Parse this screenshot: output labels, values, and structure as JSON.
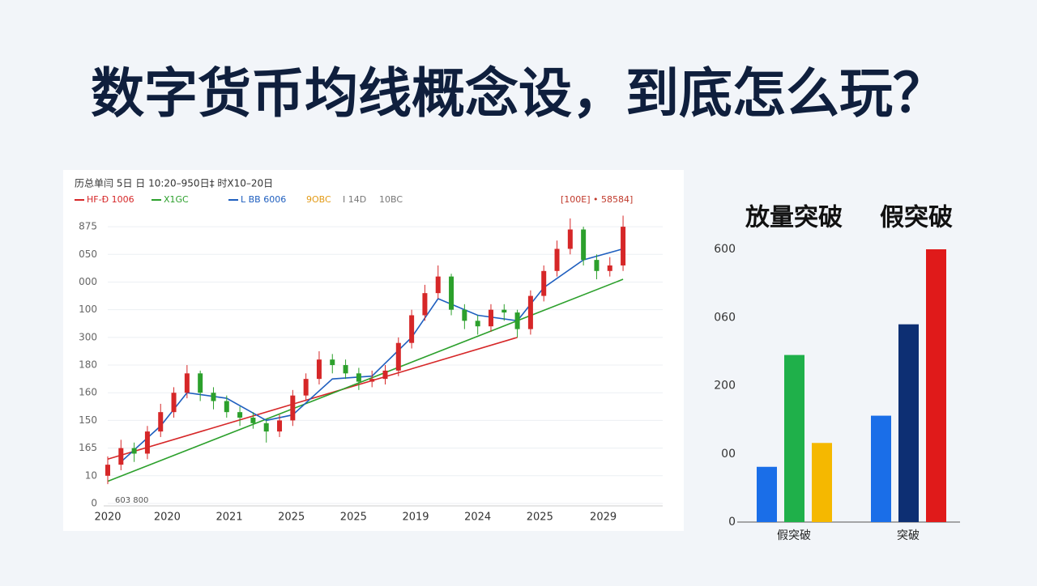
{
  "title": "数字货币均线概念设，到底怎么玩？",
  "chart_data": [
    {
      "type": "candlestick",
      "header": "历总单闫 5日 日 10:20–950日‡ 时X10–20日",
      "top_right_label": "[100E] • 58584]",
      "corner_note": "603 800",
      "up_color": "#d62728",
      "down_color": "#2ca02c",
      "xlim": [
        0,
        42
      ],
      "xticks": [
        {
          "value": 0,
          "label": "2020"
        },
        {
          "value": 4.5,
          "label": "2020"
        },
        {
          "value": 9.2,
          "label": "2021"
        },
        {
          "value": 13.9,
          "label": "2025"
        },
        {
          "value": 18.6,
          "label": "2025"
        },
        {
          "value": 23.3,
          "label": "2019"
        },
        {
          "value": 28,
          "label": "2024"
        },
        {
          "value": 32.7,
          "label": "2025"
        },
        {
          "value": 37.5,
          "label": "2029"
        }
      ],
      "ylim": [
        0,
        105
      ],
      "yticks": [
        0,
        {
          "value": 10,
          "label": "10"
        },
        {
          "value": 20,
          "label": "165"
        },
        {
          "value": 30,
          "label": "150"
        },
        {
          "value": 40,
          "label": "160"
        },
        {
          "value": 50,
          "label": "180"
        },
        {
          "value": 60,
          "label": "300"
        },
        {
          "value": 70,
          "label": "100"
        },
        {
          "value": 80,
          "label": "000"
        },
        {
          "value": 90,
          "label": "050"
        },
        {
          "value": 100,
          "label": "875"
        }
      ],
      "grid": true,
      "candles": {
        "x": [
          0,
          1,
          2,
          3,
          4,
          5,
          6,
          7,
          8,
          9,
          10,
          11,
          12,
          13,
          14,
          15,
          16,
          17,
          18,
          19,
          20,
          21,
          22,
          23,
          24,
          25,
          26,
          27,
          28,
          29,
          30,
          31,
          32,
          33,
          34,
          35,
          36,
          37,
          38,
          39
        ],
        "open": [
          10,
          14,
          20,
          18,
          26,
          33,
          40,
          47,
          40,
          37,
          33,
          31,
          29,
          26,
          30,
          39,
          45,
          52,
          50,
          47,
          44,
          45,
          48,
          58,
          68,
          76,
          82,
          70,
          66,
          64,
          70,
          69,
          63,
          75,
          84,
          92,
          99,
          88,
          84,
          86
        ],
        "high": [
          17,
          23,
          22,
          28,
          36,
          42,
          50,
          48,
          42,
          39,
          35,
          33,
          30,
          32,
          41,
          47,
          55,
          54,
          52,
          49,
          48,
          50,
          60,
          70,
          79,
          86,
          83,
          72,
          68,
          72,
          72,
          70,
          77,
          86,
          95,
          103,
          100,
          90,
          89,
          104
        ],
        "low": [
          7,
          12,
          15,
          16,
          24,
          31,
          38,
          37,
          34,
          31,
          28,
          27,
          22,
          24,
          28,
          37,
          43,
          47,
          45,
          41,
          42,
          43,
          46,
          56,
          66,
          74,
          68,
          63,
          61,
          62,
          66,
          60,
          61,
          73,
          82,
          90,
          86,
          81,
          82,
          84
        ],
        "close": [
          14,
          20,
          18,
          26,
          33,
          40,
          47,
          40,
          37,
          33,
          31,
          29,
          26,
          30,
          39,
          45,
          52,
          50,
          47,
          44,
          45,
          48,
          58,
          68,
          76,
          82,
          70,
          66,
          64,
          70,
          69,
          63,
          75,
          84,
          92,
          99,
          88,
          84,
          86,
          100
        ]
      },
      "series": [
        {
          "name": "HF-Đ 1006",
          "color": "#d62728",
          "x": [
            0,
            31
          ],
          "values": [
            16,
            60
          ]
        },
        {
          "name": "X1GC",
          "color": "#2ca02c",
          "x": [
            0,
            39
          ],
          "values": [
            8,
            81
          ]
        },
        {
          "name": "L BB 6006",
          "color": "#1f5fbf",
          "x": [
            1,
            4,
            6,
            9,
            12,
            14,
            17,
            20,
            23,
            25,
            28,
            31,
            33,
            36,
            39
          ],
          "values": [
            15,
            28,
            40,
            38,
            30,
            32,
            45,
            46,
            60,
            74,
            68,
            66,
            78,
            88,
            92
          ]
        }
      ],
      "legend_extra": [
        "9OBC",
        "I 14D",
        "10BC"
      ]
    },
    {
      "type": "bar",
      "group_titles": [
        "放量突破",
        "假突破"
      ],
      "categories": [
        "假突破",
        "突破"
      ],
      "ylim": [
        0,
        400
      ],
      "yticks": [
        0,
        {
          "value": 100,
          "label": "00"
        },
        200,
        {
          "value": 300,
          "label": "060"
        },
        {
          "value": 400,
          "label": "600"
        }
      ],
      "series": [
        {
          "colors": [
            "#1a6ee8",
            "#1a6ee8"
          ],
          "values": [
            81,
            156
          ]
        },
        {
          "colors": [
            "#1fb04a",
            "#0d2f73"
          ],
          "values": [
            245,
            290
          ]
        },
        {
          "colors": [
            "#f5b800",
            "#e01a1a"
          ],
          "values": [
            116,
            400
          ]
        }
      ]
    }
  ]
}
